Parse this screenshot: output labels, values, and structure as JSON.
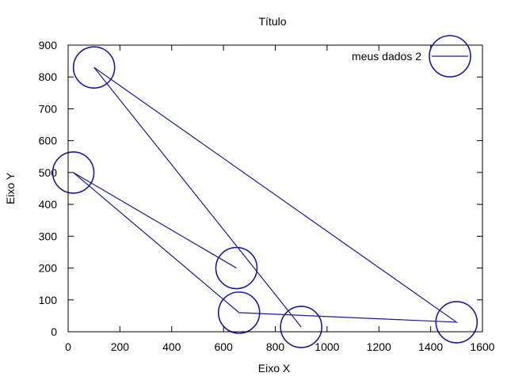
{
  "chart_data": {
    "type": "line",
    "title": "Título",
    "xlabel": "Eixo X",
    "ylabel": "Eixo Y",
    "xlim": [
      0,
      1600
    ],
    "ylim": [
      0,
      900
    ],
    "xticks": [
      0,
      200,
      400,
      600,
      800,
      1000,
      1200,
      1400,
      1600
    ],
    "yticks": [
      0,
      100,
      200,
      300,
      400,
      500,
      600,
      700,
      800,
      900
    ],
    "grid": false,
    "legend_position": "top-right",
    "series": [
      {
        "name": "meus dados 2",
        "color": "#1a1a9a",
        "marker": "circle",
        "points": [
          {
            "x": 650,
            "y": 200
          },
          {
            "x": 20,
            "y": 500
          },
          {
            "x": 660,
            "y": 60
          },
          {
            "x": 1500,
            "y": 30
          },
          {
            "x": 100,
            "y": 830
          },
          {
            "x": 900,
            "y": 15
          }
        ]
      }
    ]
  }
}
